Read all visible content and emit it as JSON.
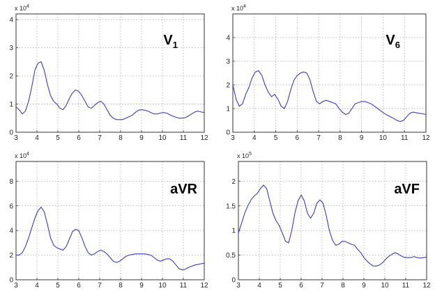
{
  "chart_data": [
    {
      "type": "line",
      "label_main": "V",
      "label_sub": "1",
      "multiplier_base": "x 10",
      "multiplier_exp": "4",
      "xlim": [
        3,
        12
      ],
      "ylim": [
        0,
        4.2
      ],
      "xticks": [
        "3",
        "4",
        "5",
        "6",
        "7",
        "8",
        "9",
        "10",
        "11",
        "12"
      ],
      "yticks": [
        "0",
        "1",
        "2",
        "3",
        "4"
      ],
      "grid": true,
      "color": "#3b3bbd",
      "series": [
        {
          "x": [
            3.0,
            3.15,
            3.3,
            3.45,
            3.6,
            3.75,
            3.9,
            4.05,
            4.2,
            4.35,
            4.5,
            4.65,
            4.8,
            4.95,
            5.1,
            5.25,
            5.4,
            5.55,
            5.7,
            5.85,
            6.0,
            6.15,
            6.3,
            6.45,
            6.6,
            6.75,
            6.9,
            7.05,
            7.2,
            7.35,
            7.5,
            7.65,
            7.8,
            7.95,
            8.1,
            8.25,
            8.4,
            8.55,
            8.7,
            8.85,
            9.0,
            9.15,
            9.3,
            9.45,
            9.6,
            9.75,
            9.9,
            10.05,
            10.2,
            10.35,
            10.5,
            10.65,
            10.8,
            10.95,
            11.1,
            11.25,
            11.4,
            11.55,
            11.7,
            11.85,
            12.0
          ],
          "y": [
            0.9,
            0.8,
            0.65,
            0.75,
            1.1,
            1.6,
            2.2,
            2.45,
            2.5,
            2.2,
            1.7,
            1.3,
            1.1,
            1.0,
            0.85,
            0.8,
            0.95,
            1.2,
            1.4,
            1.5,
            1.45,
            1.3,
            1.1,
            0.9,
            0.85,
            0.95,
            1.05,
            1.1,
            1.0,
            0.8,
            0.6,
            0.5,
            0.45,
            0.45,
            0.45,
            0.5,
            0.55,
            0.6,
            0.7,
            0.78,
            0.8,
            0.78,
            0.75,
            0.7,
            0.65,
            0.65,
            0.68,
            0.7,
            0.68,
            0.62,
            0.57,
            0.53,
            0.5,
            0.5,
            0.52,
            0.58,
            0.65,
            0.72,
            0.75,
            0.72,
            0.7
          ]
        }
      ]
    },
    {
      "type": "line",
      "label_main": "V",
      "label_sub": "6",
      "multiplier_base": "x 10",
      "multiplier_exp": "4",
      "xlim": [
        3,
        12
      ],
      "ylim": [
        0,
        5
      ],
      "xticks": [
        "3",
        "4",
        "5",
        "6",
        "7",
        "8",
        "9",
        "10",
        "11",
        "12"
      ],
      "yticks": [
        "0",
        "1",
        "2",
        "3",
        "4"
      ],
      "grid": true,
      "color": "#3b3bbd",
      "series": [
        {
          "x": [
            3.0,
            3.15,
            3.3,
            3.45,
            3.6,
            3.75,
            3.9,
            4.05,
            4.2,
            4.35,
            4.5,
            4.65,
            4.8,
            4.95,
            5.1,
            5.25,
            5.4,
            5.55,
            5.7,
            5.85,
            6.0,
            6.15,
            6.3,
            6.45,
            6.6,
            6.75,
            6.9,
            7.05,
            7.2,
            7.35,
            7.5,
            7.65,
            7.8,
            7.95,
            8.1,
            8.25,
            8.4,
            8.55,
            8.7,
            8.85,
            9.0,
            9.15,
            9.3,
            9.45,
            9.6,
            9.75,
            9.9,
            10.05,
            10.2,
            10.35,
            10.5,
            10.65,
            10.8,
            10.95,
            11.1,
            11.25,
            11.4,
            11.55,
            11.7,
            11.85,
            12.0
          ],
          "y": [
            2.0,
            1.4,
            1.1,
            1.2,
            1.6,
            1.9,
            2.3,
            2.55,
            2.6,
            2.4,
            2.0,
            1.7,
            1.5,
            1.6,
            1.4,
            1.1,
            1.0,
            1.3,
            1.8,
            2.2,
            2.4,
            2.5,
            2.55,
            2.5,
            2.2,
            1.7,
            1.3,
            1.2,
            1.3,
            1.35,
            1.3,
            1.25,
            1.2,
            1.0,
            0.85,
            0.75,
            0.8,
            1.0,
            1.2,
            1.25,
            1.3,
            1.3,
            1.25,
            1.2,
            1.1,
            1.0,
            0.9,
            0.8,
            0.72,
            0.65,
            0.58,
            0.5,
            0.45,
            0.5,
            0.65,
            0.8,
            0.85,
            0.82,
            0.8,
            0.78,
            0.75
          ]
        }
      ]
    },
    {
      "type": "line",
      "label_main": "aVR",
      "label_sub": "",
      "multiplier_base": "x 10",
      "multiplier_exp": "4",
      "xlim": [
        3,
        12
      ],
      "ylim": [
        0,
        9.6
      ],
      "xticks": [
        "3",
        "4",
        "5",
        "6",
        "7",
        "8",
        "9",
        "10",
        "11",
        "12"
      ],
      "yticks": [
        "0",
        "2",
        "4",
        "6",
        "8"
      ],
      "grid": true,
      "color": "#3b3bbd",
      "series": [
        {
          "x": [
            3.0,
            3.15,
            3.3,
            3.45,
            3.6,
            3.75,
            3.9,
            4.05,
            4.2,
            4.35,
            4.5,
            4.65,
            4.8,
            4.95,
            5.1,
            5.25,
            5.4,
            5.55,
            5.7,
            5.85,
            6.0,
            6.15,
            6.3,
            6.45,
            6.6,
            6.75,
            6.9,
            7.05,
            7.2,
            7.35,
            7.5,
            7.65,
            7.8,
            7.95,
            8.1,
            8.25,
            8.4,
            8.55,
            8.7,
            8.85,
            9.0,
            9.15,
            9.3,
            9.45,
            9.6,
            9.75,
            9.9,
            10.05,
            10.2,
            10.35,
            10.5,
            10.65,
            10.8,
            10.95,
            11.1,
            11.25,
            11.4,
            11.55,
            11.7,
            11.85,
            12.0
          ],
          "y": [
            2.0,
            2.0,
            2.2,
            2.7,
            3.4,
            4.2,
            5.0,
            5.6,
            5.9,
            5.5,
            4.5,
            3.4,
            2.8,
            2.6,
            2.5,
            2.4,
            2.7,
            3.3,
            3.9,
            4.1,
            4.0,
            3.4,
            2.7,
            2.2,
            2.0,
            2.1,
            2.3,
            2.4,
            2.3,
            2.1,
            1.8,
            1.5,
            1.4,
            1.5,
            1.7,
            1.9,
            2.0,
            2.05,
            2.1,
            2.1,
            2.1,
            2.1,
            2.05,
            2.0,
            1.8,
            1.6,
            1.5,
            1.6,
            1.7,
            1.7,
            1.5,
            1.2,
            0.9,
            0.8,
            0.85,
            1.0,
            1.1,
            1.2,
            1.25,
            1.3,
            1.35
          ]
        }
      ]
    },
    {
      "type": "line",
      "label_main": "aVF",
      "label_sub": "",
      "multiplier_base": "x 10",
      "multiplier_exp": "5",
      "xlim": [
        3,
        12
      ],
      "ylim": [
        0,
        2.4
      ],
      "xticks": [
        "3",
        "4",
        "5",
        "6",
        "7",
        "8",
        "9",
        "10",
        "11",
        "12"
      ],
      "yticks": [
        "0",
        "0.5",
        "1",
        "1.5",
        "2"
      ],
      "grid": true,
      "color": "#3b3bbd",
      "series": [
        {
          "x": [
            3.0,
            3.15,
            3.3,
            3.45,
            3.6,
            3.75,
            3.9,
            4.05,
            4.2,
            4.35,
            4.5,
            4.65,
            4.8,
            4.95,
            5.1,
            5.25,
            5.4,
            5.55,
            5.7,
            5.85,
            6.0,
            6.15,
            6.3,
            6.45,
            6.6,
            6.75,
            6.9,
            7.05,
            7.2,
            7.35,
            7.5,
            7.65,
            7.8,
            7.95,
            8.1,
            8.25,
            8.4,
            8.55,
            8.7,
            8.85,
            9.0,
            9.15,
            9.3,
            9.45,
            9.6,
            9.75,
            9.9,
            10.05,
            10.2,
            10.35,
            10.5,
            10.65,
            10.8,
            10.95,
            11.1,
            11.25,
            11.4,
            11.55,
            11.7,
            11.85,
            12.0
          ],
          "y": [
            0.95,
            1.15,
            1.35,
            1.5,
            1.62,
            1.7,
            1.75,
            1.85,
            1.92,
            1.85,
            1.6,
            1.35,
            1.2,
            1.1,
            0.95,
            0.78,
            0.75,
            1.0,
            1.35,
            1.6,
            1.72,
            1.6,
            1.35,
            1.25,
            1.35,
            1.55,
            1.62,
            1.55,
            1.3,
            1.0,
            0.8,
            0.7,
            0.72,
            0.78,
            0.78,
            0.75,
            0.72,
            0.7,
            0.62,
            0.55,
            0.45,
            0.38,
            0.32,
            0.28,
            0.28,
            0.3,
            0.35,
            0.42,
            0.48,
            0.52,
            0.55,
            0.52,
            0.48,
            0.45,
            0.45,
            0.45,
            0.47,
            0.45,
            0.44,
            0.45,
            0.46
          ]
        }
      ]
    }
  ]
}
